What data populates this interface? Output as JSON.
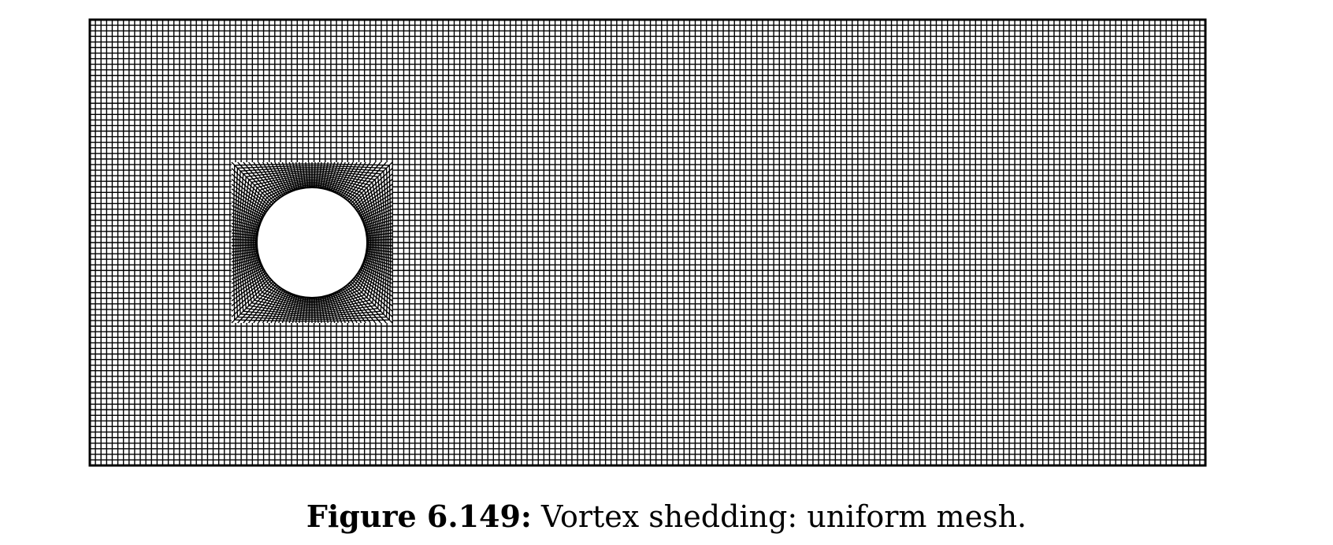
{
  "figure": {
    "caption_label": "Figure 6.149:",
    "caption_text": "Vortex shedding: uniform mesh."
  },
  "colors": {
    "mesh_line": "#000000",
    "background": "#ffffff"
  }
}
